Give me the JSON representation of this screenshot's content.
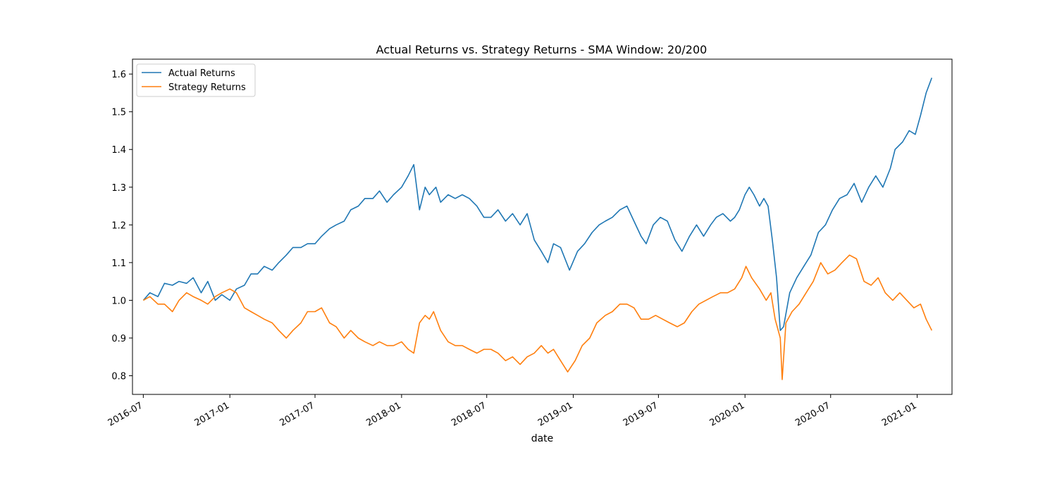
{
  "chart_data": {
    "type": "line",
    "title": "Actual Returns vs. Strategy Returns - SMA Window: 20/200",
    "xlabel": "date",
    "ylabel": "",
    "x_range": [
      "2016-06-08",
      "2021-03-16"
    ],
    "ylim": [
      0.7505,
      1.6395
    ],
    "x_ticks": [
      {
        "date": "2016-07-01",
        "label": "2016-07"
      },
      {
        "date": "2017-01-01",
        "label": "2017-01"
      },
      {
        "date": "2017-07-01",
        "label": "2017-07"
      },
      {
        "date": "2018-01-01",
        "label": "2018-01"
      },
      {
        "date": "2018-07-01",
        "label": "2018-07"
      },
      {
        "date": "2019-01-01",
        "label": "2019-01"
      },
      {
        "date": "2019-07-01",
        "label": "2019-07"
      },
      {
        "date": "2020-01-01",
        "label": "2020-01"
      },
      {
        "date": "2020-07-01",
        "label": "2020-07"
      },
      {
        "date": "2021-01-01",
        "label": "2021-01"
      }
    ],
    "y_ticks": [
      {
        "value": 0.8,
        "label": "0.8"
      },
      {
        "value": 0.9,
        "label": "0.9"
      },
      {
        "value": 1.0,
        "label": "1.0"
      },
      {
        "value": 1.1,
        "label": "1.1"
      },
      {
        "value": 1.2,
        "label": "1.2"
      },
      {
        "value": 1.3,
        "label": "1.3"
      },
      {
        "value": 1.4,
        "label": "1.4"
      },
      {
        "value": 1.5,
        "label": "1.5"
      },
      {
        "value": 1.6,
        "label": "1.6"
      }
    ],
    "grid": false,
    "legend_position": "top-left",
    "series": [
      {
        "name": "Actual Returns",
        "color": "#1f77b4",
        "points": [
          [
            "2016-07-01",
            1.0
          ],
          [
            "2016-07-15",
            1.02
          ],
          [
            "2016-08-01",
            1.01
          ],
          [
            "2016-08-15",
            1.045
          ],
          [
            "2016-09-01",
            1.04
          ],
          [
            "2016-09-15",
            1.05
          ],
          [
            "2016-10-01",
            1.045
          ],
          [
            "2016-10-15",
            1.06
          ],
          [
            "2016-11-01",
            1.02
          ],
          [
            "2016-11-15",
            1.05
          ],
          [
            "2016-12-01",
            1.0
          ],
          [
            "2016-12-15",
            1.015
          ],
          [
            "2017-01-01",
            1.0
          ],
          [
            "2017-01-15",
            1.03
          ],
          [
            "2017-02-01",
            1.04
          ],
          [
            "2017-02-15",
            1.07
          ],
          [
            "2017-03-01",
            1.07
          ],
          [
            "2017-03-15",
            1.09
          ],
          [
            "2017-04-01",
            1.08
          ],
          [
            "2017-04-15",
            1.1
          ],
          [
            "2017-05-01",
            1.12
          ],
          [
            "2017-05-15",
            1.14
          ],
          [
            "2017-06-01",
            1.14
          ],
          [
            "2017-06-15",
            1.15
          ],
          [
            "2017-07-01",
            1.15
          ],
          [
            "2017-07-15",
            1.17
          ],
          [
            "2017-08-01",
            1.19
          ],
          [
            "2017-08-15",
            1.2
          ],
          [
            "2017-09-01",
            1.21
          ],
          [
            "2017-09-15",
            1.24
          ],
          [
            "2017-10-01",
            1.25
          ],
          [
            "2017-10-15",
            1.27
          ],
          [
            "2017-11-01",
            1.27
          ],
          [
            "2017-11-15",
            1.29
          ],
          [
            "2017-12-01",
            1.26
          ],
          [
            "2017-12-15",
            1.28
          ],
          [
            "2018-01-01",
            1.3
          ],
          [
            "2018-01-15",
            1.33
          ],
          [
            "2018-01-27",
            1.36
          ],
          [
            "2018-02-08",
            1.24
          ],
          [
            "2018-02-20",
            1.3
          ],
          [
            "2018-03-01",
            1.28
          ],
          [
            "2018-03-15",
            1.3
          ],
          [
            "2018-03-25",
            1.26
          ],
          [
            "2018-04-10",
            1.28
          ],
          [
            "2018-04-25",
            1.27
          ],
          [
            "2018-05-10",
            1.28
          ],
          [
            "2018-05-25",
            1.27
          ],
          [
            "2018-06-10",
            1.25
          ],
          [
            "2018-06-25",
            1.22
          ],
          [
            "2018-07-10",
            1.22
          ],
          [
            "2018-07-25",
            1.24
          ],
          [
            "2018-08-10",
            1.21
          ],
          [
            "2018-08-25",
            1.23
          ],
          [
            "2018-09-10",
            1.2
          ],
          [
            "2018-09-25",
            1.23
          ],
          [
            "2018-10-10",
            1.16
          ],
          [
            "2018-10-25",
            1.13
          ],
          [
            "2018-11-08",
            1.1
          ],
          [
            "2018-11-20",
            1.15
          ],
          [
            "2018-12-05",
            1.14
          ],
          [
            "2018-12-24",
            1.08
          ],
          [
            "2019-01-10",
            1.13
          ],
          [
            "2019-01-25",
            1.15
          ],
          [
            "2019-02-10",
            1.18
          ],
          [
            "2019-02-25",
            1.2
          ],
          [
            "2019-03-10",
            1.21
          ],
          [
            "2019-03-25",
            1.22
          ],
          [
            "2019-04-10",
            1.24
          ],
          [
            "2019-04-25",
            1.25
          ],
          [
            "2019-05-10",
            1.21
          ],
          [
            "2019-05-25",
            1.17
          ],
          [
            "2019-06-05",
            1.15
          ],
          [
            "2019-06-20",
            1.2
          ],
          [
            "2019-07-05",
            1.22
          ],
          [
            "2019-07-20",
            1.21
          ],
          [
            "2019-08-05",
            1.16
          ],
          [
            "2019-08-20",
            1.13
          ],
          [
            "2019-09-05",
            1.17
          ],
          [
            "2019-09-20",
            1.2
          ],
          [
            "2019-10-05",
            1.17
          ],
          [
            "2019-10-20",
            1.2
          ],
          [
            "2019-11-01",
            1.22
          ],
          [
            "2019-11-15",
            1.23
          ],
          [
            "2019-12-01",
            1.21
          ],
          [
            "2019-12-10",
            1.22
          ],
          [
            "2019-12-20",
            1.24
          ],
          [
            "2020-01-01",
            1.28
          ],
          [
            "2020-01-10",
            1.3
          ],
          [
            "2020-01-20",
            1.28
          ],
          [
            "2020-02-01",
            1.25
          ],
          [
            "2020-02-10",
            1.27
          ],
          [
            "2020-02-19",
            1.25
          ],
          [
            "2020-02-28",
            1.16
          ],
          [
            "2020-03-08",
            1.06
          ],
          [
            "2020-03-16",
            0.92
          ],
          [
            "2020-03-23",
            0.93
          ],
          [
            "2020-04-05",
            1.02
          ],
          [
            "2020-04-20",
            1.06
          ],
          [
            "2020-05-05",
            1.09
          ],
          [
            "2020-05-20",
            1.12
          ],
          [
            "2020-06-05",
            1.18
          ],
          [
            "2020-06-20",
            1.2
          ],
          [
            "2020-07-05",
            1.24
          ],
          [
            "2020-07-20",
            1.27
          ],
          [
            "2020-08-05",
            1.28
          ],
          [
            "2020-08-20",
            1.31
          ],
          [
            "2020-09-05",
            1.26
          ],
          [
            "2020-09-20",
            1.3
          ],
          [
            "2020-10-05",
            1.33
          ],
          [
            "2020-10-20",
            1.3
          ],
          [
            "2020-11-05",
            1.35
          ],
          [
            "2020-11-15",
            1.4
          ],
          [
            "2020-12-01",
            1.42
          ],
          [
            "2020-12-15",
            1.45
          ],
          [
            "2020-12-28",
            1.44
          ],
          [
            "2021-01-08",
            1.49
          ],
          [
            "2021-01-20",
            1.55
          ],
          [
            "2021-02-01",
            1.59
          ]
        ]
      },
      {
        "name": "Strategy Returns",
        "color": "#ff7f0e",
        "points": [
          [
            "2016-07-01",
            1.0
          ],
          [
            "2016-07-15",
            1.01
          ],
          [
            "2016-08-01",
            0.99
          ],
          [
            "2016-08-15",
            0.99
          ],
          [
            "2016-09-01",
            0.97
          ],
          [
            "2016-09-15",
            1.0
          ],
          [
            "2016-10-01",
            1.02
          ],
          [
            "2016-10-15",
            1.01
          ],
          [
            "2016-11-01",
            1.0
          ],
          [
            "2016-11-15",
            0.99
          ],
          [
            "2016-12-01",
            1.01
          ],
          [
            "2016-12-15",
            1.02
          ],
          [
            "2017-01-01",
            1.03
          ],
          [
            "2017-01-15",
            1.02
          ],
          [
            "2017-02-01",
            0.98
          ],
          [
            "2017-02-15",
            0.97
          ],
          [
            "2017-03-01",
            0.96
          ],
          [
            "2017-03-15",
            0.95
          ],
          [
            "2017-04-01",
            0.94
          ],
          [
            "2017-04-15",
            0.92
          ],
          [
            "2017-05-01",
            0.9
          ],
          [
            "2017-05-15",
            0.92
          ],
          [
            "2017-06-01",
            0.94
          ],
          [
            "2017-06-15",
            0.97
          ],
          [
            "2017-07-01",
            0.97
          ],
          [
            "2017-07-15",
            0.98
          ],
          [
            "2017-08-01",
            0.94
          ],
          [
            "2017-08-15",
            0.93
          ],
          [
            "2017-09-01",
            0.9
          ],
          [
            "2017-09-15",
            0.92
          ],
          [
            "2017-10-01",
            0.9
          ],
          [
            "2017-10-15",
            0.89
          ],
          [
            "2017-11-01",
            0.88
          ],
          [
            "2017-11-15",
            0.89
          ],
          [
            "2017-12-01",
            0.88
          ],
          [
            "2017-12-15",
            0.88
          ],
          [
            "2018-01-01",
            0.89
          ],
          [
            "2018-01-15",
            0.87
          ],
          [
            "2018-01-27",
            0.86
          ],
          [
            "2018-02-08",
            0.94
          ],
          [
            "2018-02-20",
            0.96
          ],
          [
            "2018-03-01",
            0.95
          ],
          [
            "2018-03-10",
            0.97
          ],
          [
            "2018-03-25",
            0.92
          ],
          [
            "2018-04-10",
            0.89
          ],
          [
            "2018-04-25",
            0.88
          ],
          [
            "2018-05-10",
            0.88
          ],
          [
            "2018-05-25",
            0.87
          ],
          [
            "2018-06-10",
            0.86
          ],
          [
            "2018-06-25",
            0.87
          ],
          [
            "2018-07-10",
            0.87
          ],
          [
            "2018-07-25",
            0.86
          ],
          [
            "2018-08-10",
            0.84
          ],
          [
            "2018-08-25",
            0.85
          ],
          [
            "2018-09-10",
            0.83
          ],
          [
            "2018-09-25",
            0.85
          ],
          [
            "2018-10-10",
            0.86
          ],
          [
            "2018-10-25",
            0.88
          ],
          [
            "2018-11-08",
            0.86
          ],
          [
            "2018-11-20",
            0.87
          ],
          [
            "2018-12-05",
            0.84
          ],
          [
            "2018-12-20",
            0.81
          ],
          [
            "2019-01-05",
            0.84
          ],
          [
            "2019-01-20",
            0.88
          ],
          [
            "2019-02-05",
            0.9
          ],
          [
            "2019-02-20",
            0.94
          ],
          [
            "2019-03-10",
            0.96
          ],
          [
            "2019-03-25",
            0.97
          ],
          [
            "2019-04-10",
            0.99
          ],
          [
            "2019-04-25",
            0.99
          ],
          [
            "2019-05-10",
            0.98
          ],
          [
            "2019-05-25",
            0.95
          ],
          [
            "2019-06-10",
            0.95
          ],
          [
            "2019-06-25",
            0.96
          ],
          [
            "2019-07-10",
            0.95
          ],
          [
            "2019-07-25",
            0.94
          ],
          [
            "2019-08-10",
            0.93
          ],
          [
            "2019-08-25",
            0.94
          ],
          [
            "2019-09-10",
            0.97
          ],
          [
            "2019-09-25",
            0.99
          ],
          [
            "2019-10-10",
            1.0
          ],
          [
            "2019-10-25",
            1.01
          ],
          [
            "2019-11-10",
            1.02
          ],
          [
            "2019-11-25",
            1.02
          ],
          [
            "2019-12-10",
            1.03
          ],
          [
            "2019-12-25",
            1.06
          ],
          [
            "2020-01-03",
            1.09
          ],
          [
            "2020-01-15",
            1.06
          ],
          [
            "2020-02-01",
            1.03
          ],
          [
            "2020-02-15",
            1.0
          ],
          [
            "2020-02-25",
            1.02
          ],
          [
            "2020-03-05",
            0.95
          ],
          [
            "2020-03-16",
            0.9
          ],
          [
            "2020-03-20",
            0.79
          ],
          [
            "2020-03-28",
            0.94
          ],
          [
            "2020-04-10",
            0.97
          ],
          [
            "2020-04-25",
            0.99
          ],
          [
            "2020-05-10",
            1.02
          ],
          [
            "2020-05-25",
            1.05
          ],
          [
            "2020-06-10",
            1.1
          ],
          [
            "2020-06-25",
            1.07
          ],
          [
            "2020-07-10",
            1.08
          ],
          [
            "2020-07-25",
            1.1
          ],
          [
            "2020-08-10",
            1.12
          ],
          [
            "2020-08-25",
            1.11
          ],
          [
            "2020-09-10",
            1.05
          ],
          [
            "2020-09-25",
            1.04
          ],
          [
            "2020-10-10",
            1.06
          ],
          [
            "2020-10-25",
            1.02
          ],
          [
            "2020-11-10",
            1.0
          ],
          [
            "2020-11-25",
            1.02
          ],
          [
            "2020-12-10",
            1.0
          ],
          [
            "2020-12-25",
            0.98
          ],
          [
            "2021-01-08",
            0.99
          ],
          [
            "2021-01-20",
            0.95
          ],
          [
            "2021-02-01",
            0.92
          ]
        ]
      }
    ]
  }
}
